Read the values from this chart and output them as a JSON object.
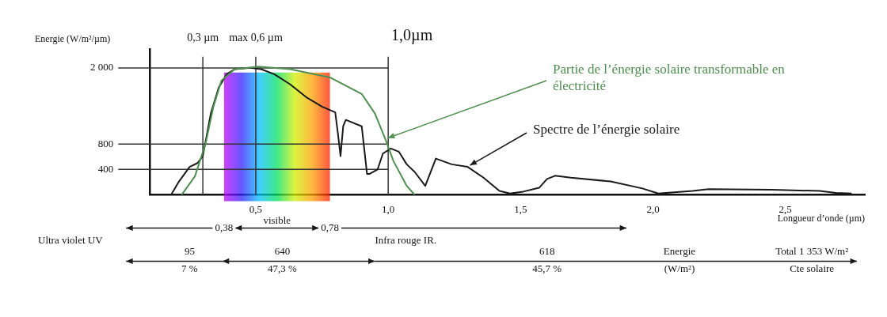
{
  "chart_data": {
    "type": "line",
    "xlabel": "Longueur d’onde (µm)",
    "ylabel": "Energie (W/m²/µm)",
    "xlim": [
      0.1,
      2.8
    ],
    "ylim": [
      0,
      2300
    ],
    "xticks": [
      {
        "value": 0.5,
        "label": "0,5"
      },
      {
        "value": 1,
        "label": "1,0"
      },
      {
        "value": 1.5,
        "label": "1,5"
      },
      {
        "value": 2,
        "label": "2,0"
      },
      {
        "value": 2.5,
        "label": "2,5"
      }
    ],
    "yticks": [
      400,
      800,
      {
        "value": 2000,
        "label": "2 000"
      }
    ],
    "series": [
      {
        "name": "Partie de l’énergie solaire transformable en électricité",
        "color": "#4f8f4f",
        "x": [
          0.22,
          0.27,
          0.31,
          0.34,
          0.37,
          0.42,
          0.51,
          0.63,
          0.78,
          0.9,
          0.95,
          0.99,
          1.02,
          1.07,
          1.1
        ],
        "values": [
          0,
          290,
          800,
          1390,
          1800,
          1980,
          2020,
          1980,
          1850,
          1590,
          1280,
          870,
          530,
          140,
          0
        ]
      },
      {
        "name": "Spectre de l’énergie solaire",
        "color": "#1a1a1a",
        "x": [
          0.18,
          0.21,
          0.25,
          0.28,
          0.3,
          0.33,
          0.36,
          0.39,
          0.42,
          0.48,
          0.52,
          0.57,
          0.63,
          0.69,
          0.75,
          0.8,
          0.81,
          0.82,
          0.83,
          0.84,
          0.9,
          0.92,
          0.93,
          0.96,
          0.98,
          1.01,
          1.04,
          1.07,
          1.1,
          1.14,
          1.18,
          1.24,
          1.3,
          1.36,
          1.42,
          1.46,
          1.51,
          1.57,
          1.6,
          1.63,
          1.69,
          1.84,
          1.96,
          2.02,
          2.15,
          2.21,
          2.45,
          2.63,
          2.69,
          2.75
        ],
        "values": [
          0,
          210,
          440,
          500,
          610,
          1280,
          1690,
          1900,
          1980,
          2000,
          1980,
          1900,
          1740,
          1540,
          1390,
          1300,
          970,
          610,
          1080,
          1180,
          1080,
          330,
          330,
          400,
          650,
          730,
          680,
          480,
          360,
          140,
          570,
          480,
          440,
          270,
          60,
          20,
          50,
          110,
          250,
          300,
          270,
          210,
          100,
          20,
          60,
          90,
          80,
          60,
          30,
          20
        ]
      }
    ],
    "ref_lines": [
      {
        "axis": "x",
        "value": 0.3,
        "label": "0,3 µm"
      },
      {
        "axis": "x",
        "value": 0.5,
        "label": "max 0,6 µm"
      },
      {
        "axis": "x",
        "value": 1,
        "label": "1,0µm"
      },
      {
        "axis": "y",
        "value": 400
      },
      {
        "axis": "y",
        "value": 800
      },
      {
        "axis": "y",
        "value": 2000
      }
    ],
    "bands": [
      {
        "axis": "x",
        "from": 0.38,
        "to": 0.78,
        "label": "visible"
      }
    ],
    "annotations": [
      "0,38",
      "0,78",
      "Ultra violet UV",
      "Infra rouge IR.",
      "95",
      "640",
      "618",
      "Energie",
      "Total 1 353 W/m²",
      "7 %",
      "47,3 %",
      "45,7 %",
      "(W/m²)",
      "Cte solaire"
    ],
    "legend": false,
    "grid": false,
    "marker": "none",
    "line_style": "solid"
  }
}
